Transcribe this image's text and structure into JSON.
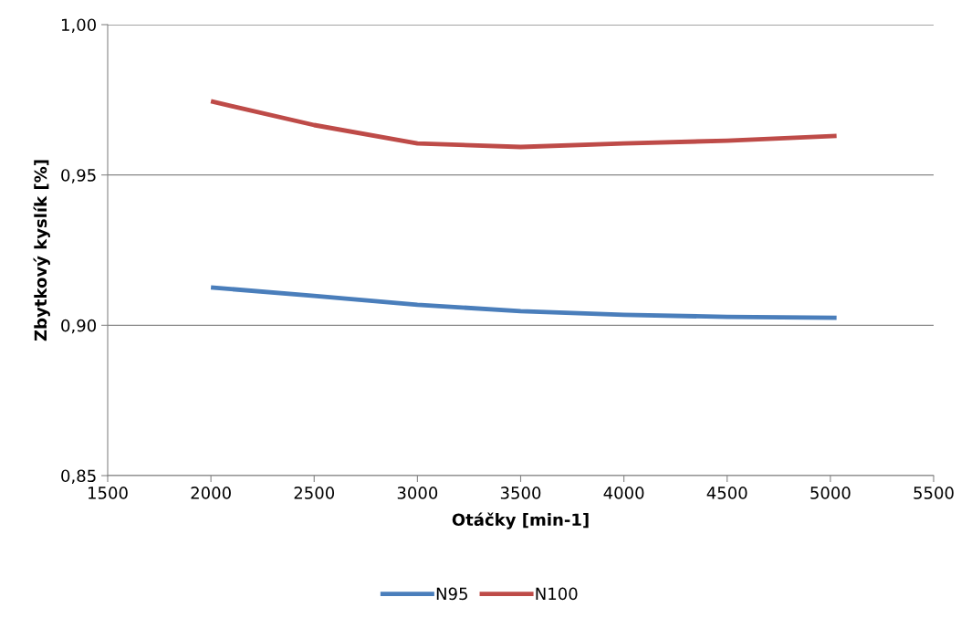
{
  "chart_data": {
    "type": "line",
    "xlabel": "Otáčky [min-1]",
    "ylabel": "Zbytkový kyslík [%]",
    "x": [
      2000,
      2500,
      3000,
      3500,
      4000,
      4500,
      5030
    ],
    "series": [
      {
        "name": "N95",
        "color": "#4a7ebb",
        "values": [
          0.9126,
          0.9098,
          0.9068,
          0.9047,
          0.9035,
          0.9028,
          0.9025
        ]
      },
      {
        "name": "N100",
        "color": "#be4b48",
        "values": [
          0.9745,
          0.9666,
          0.9605,
          0.9593,
          0.9605,
          0.9614,
          0.963
        ]
      }
    ],
    "xlim": [
      1500,
      5500
    ],
    "xticks": [
      1500,
      2000,
      2500,
      3000,
      3500,
      4000,
      4500,
      5000,
      5500
    ],
    "ylim": [
      0.85,
      1.0
    ],
    "yticks": [
      {
        "value": 0.85,
        "label": "0,85"
      },
      {
        "value": 0.9,
        "label": "0,90"
      },
      {
        "value": 0.95,
        "label": "0,95"
      },
      {
        "value": 1.0,
        "label": "1,00"
      }
    ],
    "grid": "y",
    "legend": "bottom",
    "marker": "none",
    "line_style": "solid"
  }
}
